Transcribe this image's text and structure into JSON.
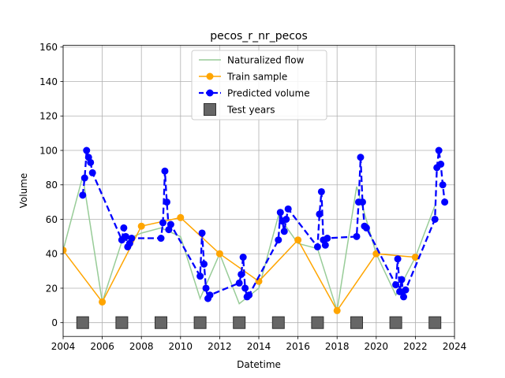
{
  "chart_data": {
    "type": "line",
    "title": "pecos_r_nr_pecos",
    "xlabel": "Datetime",
    "ylabel": "Volume",
    "xlim": [
      2004,
      2024
    ],
    "ylim": [
      -8,
      161
    ],
    "x_ticks": [
      2004,
      2006,
      2008,
      2010,
      2012,
      2014,
      2016,
      2018,
      2020,
      2022,
      2024
    ],
    "y_ticks": [
      0,
      20,
      40,
      60,
      80,
      100,
      120,
      140,
      160
    ],
    "grid": true,
    "legend_position": "top-center",
    "series": [
      {
        "name": "Naturalized flow",
        "kind": "line",
        "color": "#98cc98",
        "x": [
          2004.0,
          2005.0,
          2006.0,
          2007.0,
          2008.0,
          2009.0,
          2010.0,
          2011.0,
          2012.0,
          2013.0,
          2014.0,
          2015.0,
          2016.0,
          2017.0,
          2018.0,
          2019.0,
          2020.0,
          2021.0,
          2022.0,
          2023.0
        ],
        "values": [
          42,
          85,
          12,
          47,
          52,
          55,
          50,
          14,
          40,
          11,
          20,
          62,
          46,
          43,
          7,
          79,
          40,
          16,
          38,
          68
        ]
      },
      {
        "name": "Train sample",
        "kind": "line-marker",
        "color": "#ffa500",
        "x": [
          2004.0,
          2006.0,
          2008.0,
          2010.0,
          2012.0,
          2014.0,
          2016.0,
          2018.0,
          2020.0,
          2022.0
        ],
        "values": [
          42,
          12,
          56,
          61,
          40,
          24,
          48,
          7,
          40,
          38
        ]
      },
      {
        "name": "Predicted volume",
        "kind": "dashed-marker",
        "color": "#0000ff",
        "x": [
          2005.0,
          2005.1,
          2005.2,
          2005.3,
          2005.4,
          2005.5,
          2007.0,
          2007.1,
          2007.2,
          2007.3,
          2007.4,
          2007.5,
          2009.0,
          2009.1,
          2009.2,
          2009.3,
          2009.4,
          2009.5,
          2011.0,
          2011.1,
          2011.2,
          2011.3,
          2011.4,
          2011.5,
          2013.0,
          2013.1,
          2013.2,
          2013.3,
          2013.4,
          2013.5,
          2015.0,
          2015.1,
          2015.2,
          2015.3,
          2015.4,
          2015.5,
          2017.0,
          2017.1,
          2017.2,
          2017.3,
          2017.4,
          2017.5,
          2019.0,
          2019.1,
          2019.2,
          2019.3,
          2019.4,
          2019.5,
          2021.0,
          2021.1,
          2021.2,
          2021.3,
          2021.4,
          2021.5,
          2023.0,
          2023.1,
          2023.2,
          2023.3,
          2023.4,
          2023.5
        ],
        "values": [
          74,
          84,
          100,
          96,
          93,
          87,
          48,
          55,
          50,
          44,
          46,
          49,
          49,
          58,
          88,
          70,
          54,
          57,
          27,
          52,
          34,
          20,
          14,
          16,
          23,
          28,
          38,
          20,
          15,
          16,
          48,
          64,
          59,
          53,
          60,
          66,
          44,
          63,
          76,
          48,
          45,
          49,
          50,
          70,
          96,
          70,
          56,
          55,
          22,
          37,
          18,
          25,
          15,
          19,
          60,
          90,
          100,
          92,
          80,
          70
        ]
      },
      {
        "name": "Test years",
        "kind": "square-marker",
        "color": "#666666",
        "x": [
          2005.0,
          2007.0,
          2009.0,
          2011.0,
          2013.0,
          2015.0,
          2017.0,
          2019.0,
          2021.0,
          2023.0
        ],
        "values": [
          0,
          0,
          0,
          0,
          0,
          0,
          0,
          0,
          0,
          0
        ]
      }
    ]
  }
}
